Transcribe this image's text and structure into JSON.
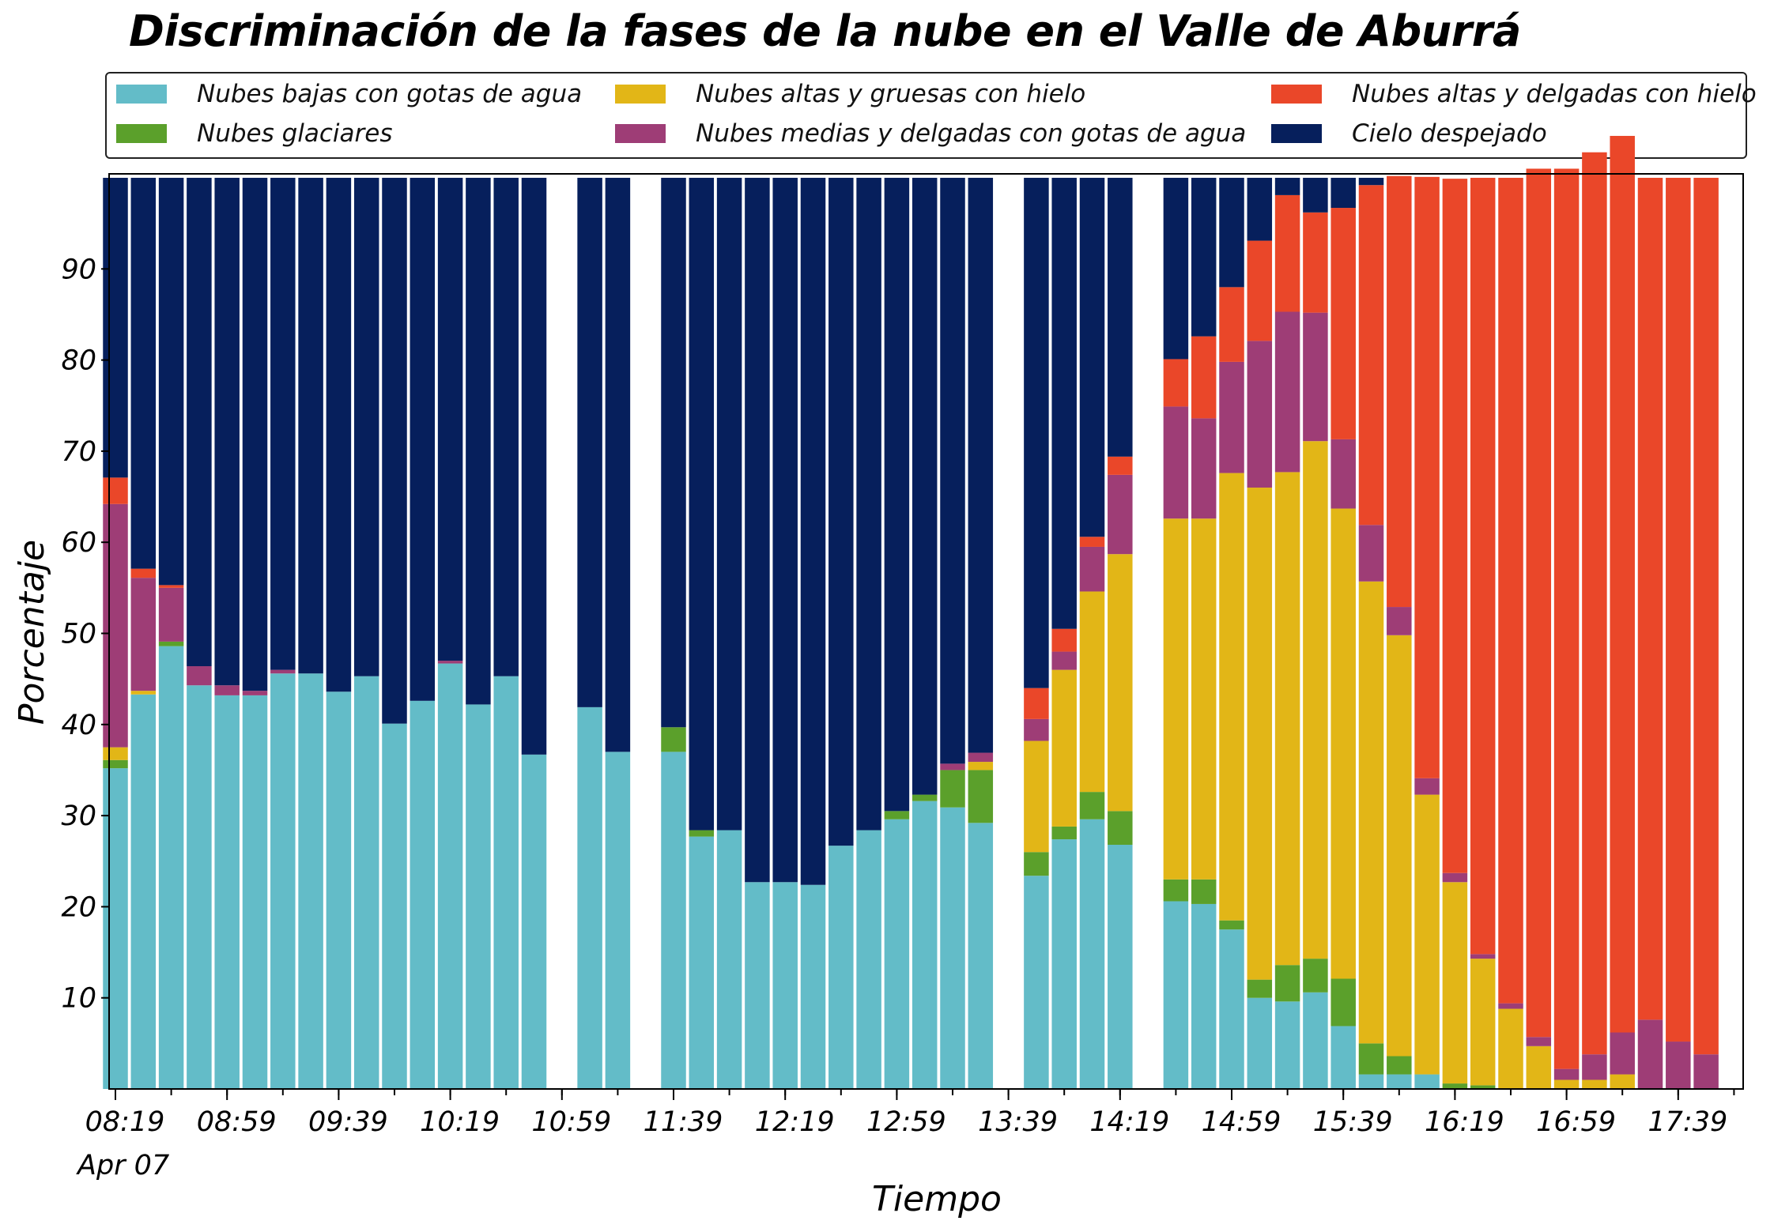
{
  "chart_data": {
    "type": "bar",
    "stacked": true,
    "title": "Discriminación de la fases de la nube en el Valle de Aburrá",
    "xlabel": "Tiempo",
    "ylabel": "Porcentaje",
    "ylim": [
      0,
      100
    ],
    "yticks": [
      10,
      20,
      30,
      40,
      50,
      60,
      70,
      80,
      90
    ],
    "grid": false,
    "legend_position": "top",
    "x_start": "08:19",
    "x_interval_minutes": 10,
    "xtick_labels": [
      "08:19",
      "08:59",
      "09:39",
      "10:19",
      "10:59",
      "11:39",
      "12:19",
      "12:59",
      "13:39",
      "14:19",
      "14:59",
      "15:39",
      "16:19",
      "16:59",
      "17:39"
    ],
    "x_date_label": "Apr 07",
    "series": [
      {
        "name": "Nubes bajas con gotas de agua",
        "color": "#63bcc8",
        "values": [
          35.2,
          43.3,
          48.6,
          44.3,
          43.2,
          43.2,
          45.6,
          45.6,
          43.6,
          45.3,
          40.1,
          42.6,
          46.7,
          42.2,
          45.3,
          36.7,
          null,
          41.9,
          37.0,
          null,
          37.0,
          27.7,
          28.4,
          22.7,
          22.7,
          22.4,
          26.7,
          28.4,
          29.6,
          31.6,
          30.9,
          29.2,
          null,
          23.4,
          27.4,
          29.6,
          26.8,
          null,
          20.6,
          20.3,
          17.5,
          10.0,
          9.6,
          10.6,
          6.9,
          1.6,
          1.6,
          1.6,
          0.0,
          0.0,
          0.0,
          0.0,
          0.0,
          0.0,
          0.0,
          0.0,
          0.0,
          0.0
        ]
      },
      {
        "name": "Nubes glaciares",
        "color": "#5ba02b",
        "values": [
          0.9,
          0.0,
          0.5,
          0.0,
          0.0,
          0.0,
          0.0,
          0.0,
          0.0,
          0.0,
          0.0,
          0.0,
          0.0,
          0.0,
          0.0,
          0.0,
          null,
          0.0,
          0.0,
          null,
          2.7,
          0.7,
          0.0,
          0.0,
          0.0,
          0.0,
          0.0,
          0.0,
          0.9,
          0.7,
          4.1,
          5.8,
          null,
          2.6,
          1.4,
          3.0,
          3.7,
          null,
          2.4,
          2.7,
          1.0,
          2.0,
          4.0,
          3.7,
          5.2,
          3.4,
          2.0,
          0.0,
          0.6,
          0.4,
          0.0,
          0.0,
          0.0,
          0.0,
          0.0,
          0.0,
          0.0,
          0.0
        ]
      },
      {
        "name": "Nubes altas y gruesas con hielo",
        "color": "#e2b617",
        "values": [
          1.4,
          0.4,
          0.0,
          0.0,
          0.0,
          0.0,
          0.0,
          0.0,
          0.0,
          0.0,
          0.0,
          0.0,
          0.0,
          0.0,
          0.0,
          0.0,
          null,
          0.0,
          0.0,
          null,
          0.0,
          0.0,
          0.0,
          0.0,
          0.0,
          0.0,
          0.0,
          0.0,
          0.0,
          0.0,
          0.0,
          0.9,
          null,
          12.2,
          17.2,
          22.0,
          28.2,
          null,
          39.6,
          39.6,
          49.1,
          54.0,
          54.1,
          56.8,
          51.6,
          50.7,
          46.2,
          30.7,
          22.1,
          13.9,
          8.8,
          4.7,
          1.0,
          1.0,
          1.6,
          0.0,
          0.0,
          0.0
        ]
      },
      {
        "name": "Nubes medias y delgadas con gotas de agua",
        "color": "#9e3d76",
        "values": [
          26.7,
          12.4,
          5.9,
          2.1,
          1.1,
          0.5,
          0.4,
          0.0,
          0.0,
          0.0,
          0.0,
          0.0,
          0.3,
          0.0,
          0.0,
          0.0,
          null,
          0.0,
          0.0,
          null,
          0.0,
          0.0,
          0.0,
          0.0,
          0.0,
          0.0,
          0.0,
          0.0,
          0.0,
          0.0,
          0.7,
          1.0,
          null,
          2.4,
          2.0,
          4.9,
          8.7,
          null,
          12.3,
          11.0,
          12.2,
          16.1,
          17.6,
          14.1,
          7.6,
          6.2,
          3.1,
          1.8,
          1.0,
          0.5,
          0.6,
          1.0,
          1.2,
          2.8,
          4.6,
          7.6,
          5.2,
          3.8
        ]
      },
      {
        "name": "Nubes altas y delgadas con hielo",
        "color": "#ea4729",
        "values": [
          2.9,
          1.0,
          0.3,
          0.0,
          0.0,
          0.0,
          0.0,
          0.0,
          0.0,
          0.0,
          0.0,
          0.0,
          0.0,
          0.0,
          0.0,
          0.0,
          null,
          0.0,
          0.0,
          null,
          0.0,
          0.0,
          0.0,
          0.0,
          0.0,
          0.0,
          0.0,
          0.0,
          0.0,
          0.0,
          0.0,
          0.0,
          null,
          3.4,
          2.5,
          1.1,
          2.0,
          null,
          5.2,
          9.0,
          8.2,
          11.0,
          12.8,
          11.0,
          25.4,
          37.3,
          47.3,
          66.0,
          76.2,
          85.2,
          90.6,
          95.3,
          98.8,
          99.0,
          98.4,
          92.4,
          94.8,
          96.2
        ]
      },
      {
        "name": "Cielo despejado",
        "color": "#061f5c",
        "values": [
          32.9,
          42.9,
          44.7,
          53.6,
          55.7,
          56.3,
          54.0,
          54.4,
          56.4,
          54.7,
          59.9,
          57.4,
          53.0,
          57.8,
          54.7,
          63.3,
          null,
          58.1,
          63.0,
          null,
          60.3,
          71.6,
          71.6,
          77.3,
          77.3,
          77.6,
          73.3,
          71.6,
          69.5,
          67.7,
          64.3,
          63.1,
          null,
          56.0,
          49.5,
          39.4,
          30.6,
          null,
          19.9,
          17.4,
          12.0,
          6.9,
          1.9,
          3.8,
          3.3,
          0.8,
          0.0,
          0.0,
          0.0,
          0.0,
          0.0,
          0.0,
          0.0,
          0.0,
          0.0,
          0.0,
          0.0,
          0.0
        ]
      }
    ]
  }
}
